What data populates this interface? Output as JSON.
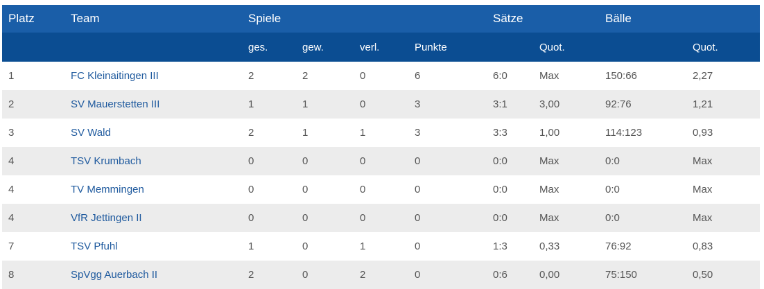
{
  "header": {
    "row1": {
      "platz": "Platz",
      "team": "Team",
      "spiele": "Spiele",
      "saetze": "Sätze",
      "baelle": "Bälle"
    },
    "row2": {
      "ges": "ges.",
      "gew": "gew.",
      "verl": "verl.",
      "punkte": "Punkte",
      "saetze_quot": "Quot.",
      "baelle_quot": "Quot."
    }
  },
  "rows": [
    {
      "platz": "1",
      "team": "FC Kleinaitingen III",
      "ges": "2",
      "gew": "2",
      "verl": "0",
      "punkte": "6",
      "saetze": "6:0",
      "saetze_quot": "Max",
      "baelle": "150:66",
      "baelle_quot": "2,27"
    },
    {
      "platz": "2",
      "team": "SV Mauerstetten III",
      "ges": "1",
      "gew": "1",
      "verl": "0",
      "punkte": "3",
      "saetze": "3:1",
      "saetze_quot": "3,00",
      "baelle": "92:76",
      "baelle_quot": "1,21"
    },
    {
      "platz": "3",
      "team": "SV Wald",
      "ges": "2",
      "gew": "1",
      "verl": "1",
      "punkte": "3",
      "saetze": "3:3",
      "saetze_quot": "1,00",
      "baelle": "114:123",
      "baelle_quot": "0,93"
    },
    {
      "platz": "4",
      "team": "TSV Krumbach",
      "ges": "0",
      "gew": "0",
      "verl": "0",
      "punkte": "0",
      "saetze": "0:0",
      "saetze_quot": "Max",
      "baelle": "0:0",
      "baelle_quot": "Max"
    },
    {
      "platz": "4",
      "team": "TV Memmingen",
      "ges": "0",
      "gew": "0",
      "verl": "0",
      "punkte": "0",
      "saetze": "0:0",
      "saetze_quot": "Max",
      "baelle": "0:0",
      "baelle_quot": "Max"
    },
    {
      "platz": "4",
      "team": "VfR Jettingen II",
      "ges": "0",
      "gew": "0",
      "verl": "0",
      "punkte": "0",
      "saetze": "0:0",
      "saetze_quot": "Max",
      "baelle": "0:0",
      "baelle_quot": "Max"
    },
    {
      "platz": "7",
      "team": "TSV Pfuhl",
      "ges": "1",
      "gew": "0",
      "verl": "1",
      "punkte": "0",
      "saetze": "1:3",
      "saetze_quot": "0,33",
      "baelle": "76:92",
      "baelle_quot": "0,83"
    },
    {
      "platz": "8",
      "team": "SpVgg Auerbach II",
      "ges": "2",
      "gew": "0",
      "verl": "2",
      "punkte": "0",
      "saetze": "0:6",
      "saetze_quot": "0,00",
      "baelle": "75:150",
      "baelle_quot": "0,50"
    }
  ],
  "colors": {
    "header_top": "#1a5ea8",
    "header_sub": "#0b4d92",
    "team_link": "#1f5a9e",
    "row_alt": "#ececec"
  }
}
